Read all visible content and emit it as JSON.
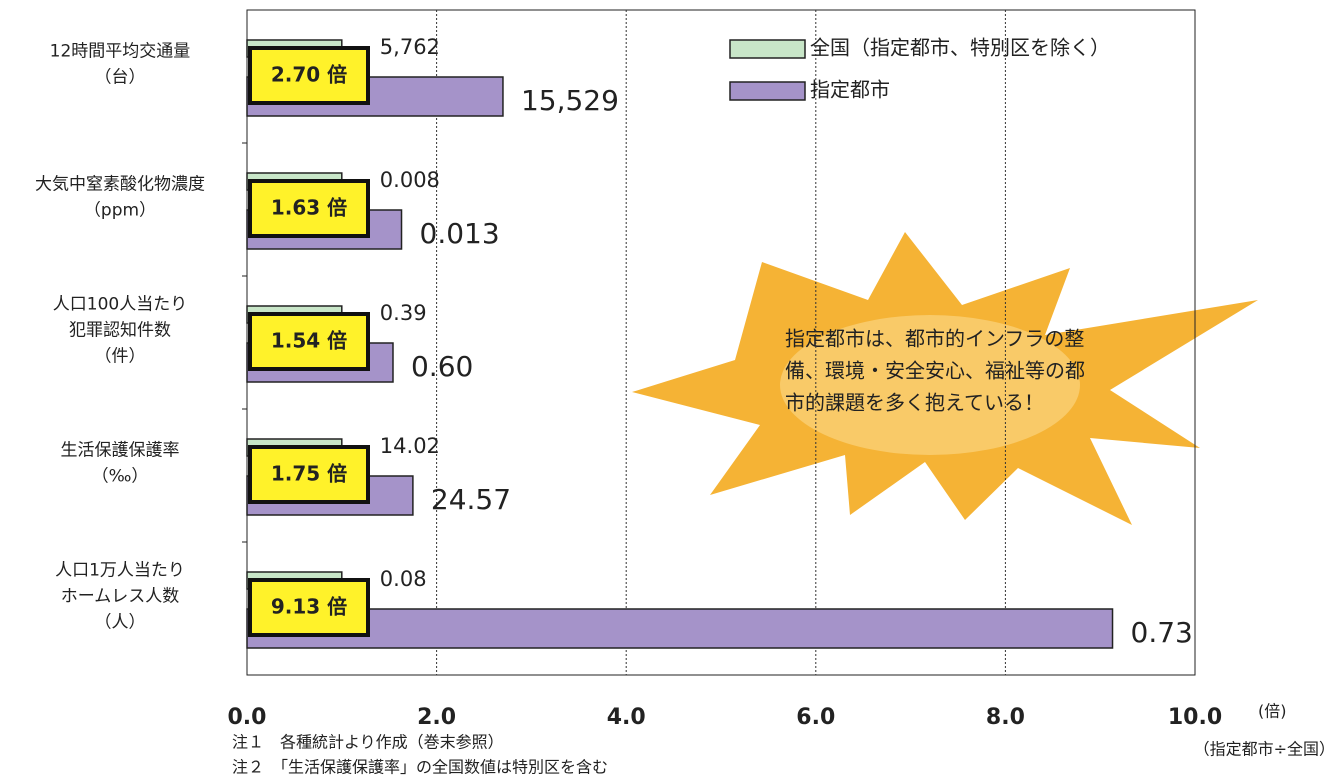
{
  "chart_data": {
    "type": "bar",
    "orientation": "horizontal",
    "categories": [
      [
        "12時間平均交通量",
        "（台）"
      ],
      [
        "大気中窒素酸化物濃度",
        "（ppm）"
      ],
      [
        "人口100人当たり",
        "犯罪認知件数",
        "（件）"
      ],
      [
        "生活保護保護率",
        "（‰）"
      ],
      [
        "人口1万人当たり",
        "ホームレス人数",
        "（人）"
      ]
    ],
    "series": [
      {
        "name": "全国（指定都市、特別区を除く）",
        "color": "#c8e6c8",
        "values": [
          1,
          1,
          1,
          1,
          1
        ],
        "actual_values": [
          "5,762",
          "0.008",
          "0.39",
          "14.02",
          "0.08"
        ]
      },
      {
        "name": "指定都市",
        "color": "#a593c9",
        "values": [
          2.7,
          1.63,
          1.54,
          1.75,
          9.13
        ],
        "value_labels": [
          "2.70 倍",
          "1.63 倍",
          "1.54 倍",
          "1.75 倍",
          "9.13 倍"
        ],
        "actual_values": [
          "15,529",
          "0.013",
          "0.60",
          "24.57",
          "0.73"
        ]
      }
    ],
    "xlim": [
      0,
      10
    ],
    "xticks": [
      {
        "value": 0,
        "label": "0.0"
      },
      {
        "value": 2,
        "label": "2.0"
      },
      {
        "value": 4,
        "label": "4.0"
      },
      {
        "value": 6,
        "label": "6.0"
      },
      {
        "value": 8,
        "label": "8.0"
      },
      {
        "value": 10,
        "label": "10.0"
      }
    ],
    "x_unit": "(倍)",
    "x_label": "（指定都市÷全国）",
    "grid": true,
    "legend": "top-right",
    "callout": [
      "指定都市は、都市的インフラの整",
      "備、環境・安全安心、福祉等の都",
      "市的課題を多く抱えている！"
    ],
    "notes": [
      "注１　各種統計より作成（巻末参照）",
      "注２　「生活保護保護率」の全国数値は特別区を含む"
    ]
  }
}
